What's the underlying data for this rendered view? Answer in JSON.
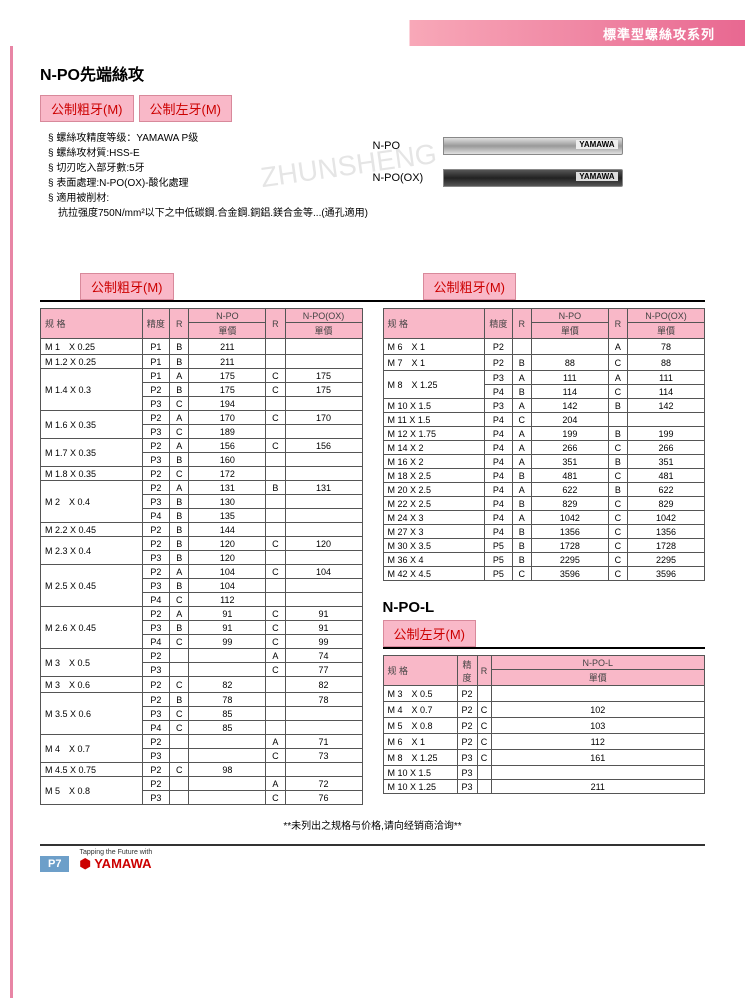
{
  "header_band": "標準型螺絲攻系列",
  "title": "N-PO先端絲攻",
  "type_boxes": [
    "公制粗牙(M)",
    "公制左牙(M)"
  ],
  "specs": [
    "§ 螺絲攻精度等级：YAMAWA P级",
    "§ 螺絲攻材質:HSS-E",
    "§ 切刃吃入部牙數:5牙",
    "§ 表面處理:N-PO(OX)-酸化處理",
    "§ 適用被削材:",
    "　抗拉强度750N/mm²以下之中低碳鋼.合金鋼.銅鋁.鎂合金等...(通孔適用)"
  ],
  "taps": [
    {
      "label": "N-PO",
      "dark": false,
      "brand": "YAMAWA"
    },
    {
      "label": "N-PO(OX)",
      "dark": true,
      "brand": "YAMAWA"
    }
  ],
  "section_heads": [
    "公制粗牙(M)",
    "公制粗牙(M)"
  ],
  "table_heads": {
    "spec": "规 格",
    "prec": "精度",
    "r": "R",
    "npo": "N-PO",
    "npoox": "N-PO(OX)",
    "npol": "N-PO-L",
    "price": "單價"
  },
  "left_table": [
    {
      "spec": "M 1　X  0.25",
      "rows": [
        [
          "P1",
          "B",
          "211",
          "",
          ""
        ]
      ]
    },
    {
      "spec": "M 1.2 X  0.25",
      "rows": [
        [
          "P1",
          "B",
          "211",
          "",
          ""
        ]
      ]
    },
    {
      "spec": "M 1.4 X  0.3",
      "rows": [
        [
          "P1",
          "A",
          "175",
          "C",
          "175"
        ],
        [
          "P2",
          "B",
          "175",
          "C",
          "175"
        ],
        [
          "P3",
          "C",
          "194",
          "",
          ""
        ]
      ]
    },
    {
      "spec": "M 1.6 X  0.35",
      "rows": [
        [
          "P2",
          "A",
          "170",
          "C",
          "170"
        ],
        [
          "P3",
          "C",
          "189",
          "",
          ""
        ]
      ]
    },
    {
      "spec": "M 1.7 X  0.35",
      "rows": [
        [
          "P2",
          "A",
          "156",
          "C",
          "156"
        ],
        [
          "P3",
          "B",
          "160",
          "",
          ""
        ]
      ]
    },
    {
      "spec": "M 1.8 X  0.35",
      "rows": [
        [
          "P2",
          "C",
          "172",
          "",
          ""
        ]
      ]
    },
    {
      "spec": "M 2　X  0.4",
      "rows": [
        [
          "P2",
          "A",
          "131",
          "B",
          "131"
        ],
        [
          "P3",
          "B",
          "130",
          "",
          ""
        ],
        [
          "P4",
          "B",
          "135",
          "",
          ""
        ]
      ]
    },
    {
      "spec": "M 2.2 X  0.45",
      "rows": [
        [
          "P2",
          "B",
          "144",
          "",
          ""
        ]
      ]
    },
    {
      "spec": "M 2.3 X  0.4",
      "rows": [
        [
          "P2",
          "B",
          "120",
          "C",
          "120"
        ],
        [
          "P3",
          "B",
          "120",
          "",
          ""
        ]
      ]
    },
    {
      "spec": "M 2.5 X  0.45",
      "rows": [
        [
          "P2",
          "A",
          "104",
          "C",
          "104"
        ],
        [
          "P3",
          "B",
          "104",
          "",
          ""
        ],
        [
          "P4",
          "C",
          "112",
          "",
          ""
        ]
      ]
    },
    {
      "spec": "M 2.6 X  0.45",
      "rows": [
        [
          "P2",
          "A",
          "91",
          "C",
          "91"
        ],
        [
          "P3",
          "B",
          "91",
          "C",
          "91"
        ],
        [
          "P4",
          "C",
          "99",
          "C",
          "99"
        ]
      ]
    },
    {
      "spec": "M 3　X  0.5",
      "rows": [
        [
          "P2",
          "",
          "",
          "A",
          "74"
        ],
        [
          "P3",
          "",
          "",
          "C",
          "77"
        ]
      ]
    },
    {
      "spec": "M 3　X  0.6",
      "rows": [
        [
          "P2",
          "C",
          "82",
          "",
          "82"
        ]
      ]
    },
    {
      "spec": "M 3.5 X  0.6",
      "rows": [
        [
          "P2",
          "B",
          "78",
          "",
          "78"
        ],
        [
          "P3",
          "C",
          "85",
          "",
          ""
        ],
        [
          "P4",
          "C",
          "85",
          "",
          ""
        ]
      ]
    },
    {
      "spec": "M 4　X  0.7",
      "rows": [
        [
          "P2",
          "",
          "",
          "A",
          "71"
        ],
        [
          "P3",
          "",
          "",
          "C",
          "73"
        ]
      ]
    },
    {
      "spec": "M 4.5 X  0.75",
      "rows": [
        [
          "P2",
          "C",
          "98",
          "",
          ""
        ]
      ]
    },
    {
      "spec": "M 5　X  0.8",
      "rows": [
        [
          "P2",
          "",
          "",
          "A",
          "72"
        ],
        [
          "P3",
          "",
          "",
          "C",
          "76"
        ]
      ]
    }
  ],
  "right_table": [
    {
      "spec": "M 6　X  1",
      "rows": [
        [
          "P2",
          "",
          "",
          "A",
          "78"
        ]
      ]
    },
    {
      "spec": "M 7　X  1",
      "rows": [
        [
          "P2",
          "B",
          "88",
          "C",
          "88"
        ]
      ]
    },
    {
      "spec": "M 8　X  1.25",
      "rows": [
        [
          "P3",
          "A",
          "111",
          "A",
          "111"
        ],
        [
          "P4",
          "B",
          "114",
          "C",
          "114"
        ]
      ]
    },
    {
      "spec": "M 10  X  1.5",
      "rows": [
        [
          "P3",
          "A",
          "142",
          "B",
          "142"
        ]
      ]
    },
    {
      "spec": "M 11  X  1.5",
      "rows": [
        [
          "P4",
          "C",
          "204",
          "",
          ""
        ]
      ]
    },
    {
      "spec": "M 12  X  1.75",
      "rows": [
        [
          "P4",
          "A",
          "199",
          "B",
          "199"
        ]
      ]
    },
    {
      "spec": "M 14  X  2",
      "rows": [
        [
          "P4",
          "A",
          "266",
          "C",
          "266"
        ]
      ]
    },
    {
      "spec": "M 16  X  2",
      "rows": [
        [
          "P4",
          "A",
          "351",
          "B",
          "351"
        ]
      ]
    },
    {
      "spec": "M 18  X  2.5",
      "rows": [
        [
          "P4",
          "B",
          "481",
          "C",
          "481"
        ]
      ]
    },
    {
      "spec": "M 20  X  2.5",
      "rows": [
        [
          "P4",
          "A",
          "622",
          "B",
          "622"
        ]
      ]
    },
    {
      "spec": "M 22  X  2.5",
      "rows": [
        [
          "P4",
          "B",
          "829",
          "C",
          "829"
        ]
      ]
    },
    {
      "spec": "M 24  X  3",
      "rows": [
        [
          "P4",
          "A",
          "1042",
          "C",
          "1042"
        ]
      ]
    },
    {
      "spec": "M 27  X  3",
      "rows": [
        [
          "P4",
          "B",
          "1356",
          "C",
          "1356"
        ]
      ]
    },
    {
      "spec": "M 30  X  3.5",
      "rows": [
        [
          "P5",
          "B",
          "1728",
          "C",
          "1728"
        ]
      ]
    },
    {
      "spec": "M 36  X  4",
      "rows": [
        [
          "P5",
          "B",
          "2295",
          "C",
          "2295"
        ]
      ]
    },
    {
      "spec": "M 42  X  4.5",
      "rows": [
        [
          "P5",
          "C",
          "3596",
          "C",
          "3596"
        ]
      ]
    }
  ],
  "npol_title": "N-PO-L",
  "npol_sub": "公制左牙(M)",
  "npol_table": [
    {
      "spec": "M 3　X 0.5",
      "p": "P2",
      "r": "",
      "price": ""
    },
    {
      "spec": "M 4　X 0.7",
      "p": "P2",
      "r": "C",
      "price": "102"
    },
    {
      "spec": "M 5　X 0.8",
      "p": "P2",
      "r": "C",
      "price": "103"
    },
    {
      "spec": "M 6　X 1",
      "p": "P2",
      "r": "C",
      "price": "112"
    },
    {
      "spec": "M 8　X 1.25",
      "p": "P3",
      "r": "C",
      "price": "161"
    },
    {
      "spec": "M 10  X 1.5",
      "p": "P3",
      "r": "",
      "price": ""
    },
    {
      "spec": "M 10  X 1.25",
      "p": "P3",
      "r": "",
      "price": "211"
    }
  ],
  "footer_note": "**未列出之规格与价格,请向经销商洽询**",
  "page_num": "P7",
  "logo_small": "Tapping the Future with",
  "logo": "YAMAWA",
  "colors": {
    "pink": "#f9b8c8",
    "red": "#c00",
    "band": "#e86891"
  }
}
